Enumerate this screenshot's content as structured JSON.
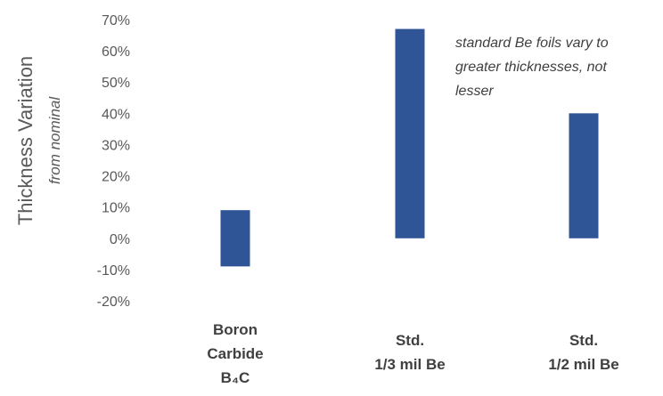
{
  "chart_data": {
    "type": "bar",
    "ylabel": "Thickness Variation",
    "ylabel_sub": "from nominal",
    "ylim": [
      -20,
      70
    ],
    "yticks": [
      70,
      60,
      50,
      40,
      30,
      20,
      10,
      0,
      -10,
      -20
    ],
    "ytick_labels": [
      "70%",
      "60%",
      "50%",
      "40%",
      "30%",
      "20%",
      "10%",
      "0%",
      "-10%",
      "-20%"
    ],
    "grid": false,
    "bar_color": "#2f5597",
    "categories": [
      {
        "lines": [
          "Boron",
          "Carbide",
          "B₄C"
        ]
      },
      {
        "lines": [
          "Std.",
          "1/3 mil Be"
        ]
      },
      {
        "lines": [
          "Std.",
          "1/2 mil Be"
        ]
      }
    ],
    "bars": [
      {
        "low": -9,
        "high": 9
      },
      {
        "low": 0,
        "high": 67
      },
      {
        "low": 0,
        "high": 40
      }
    ],
    "annotation": [
      "standard Be foils vary to",
      "greater thicknesses, not",
      "lesser"
    ]
  }
}
